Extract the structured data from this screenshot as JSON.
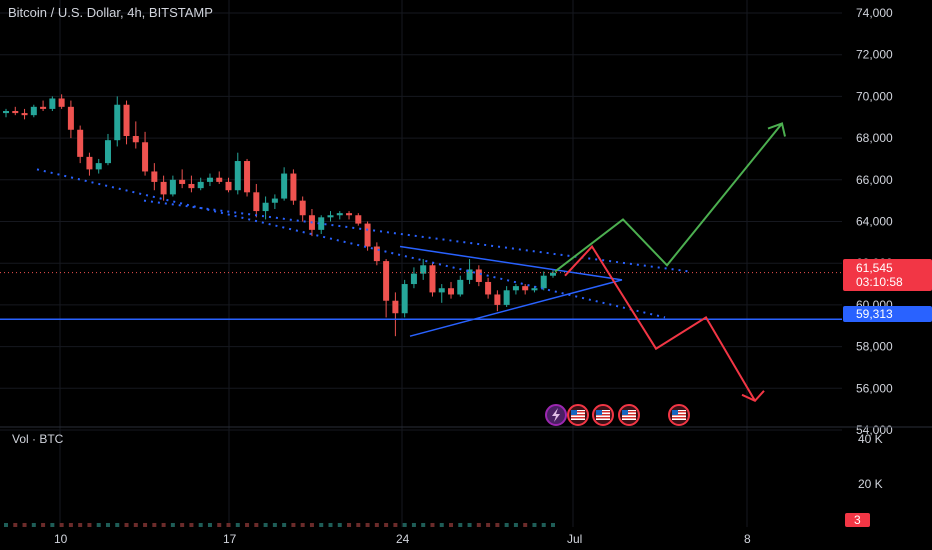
{
  "header": {
    "title": "Bitcoin / U.S. Dollar, 4h, BITSTAMP"
  },
  "volume_pane": {
    "title": "Vol · BTC",
    "ticks": [
      "40 K",
      "20 K"
    ],
    "badge": "3"
  },
  "price_tags": {
    "last_price": "61,545",
    "countdown": "03:10:58",
    "level": "59,313"
  },
  "colors": {
    "background": "#000000",
    "up": "#26a69a",
    "down": "#ef5350",
    "trendline": "#2962ff",
    "bullish_path": "#4caf50",
    "bearish_path": "#f23645",
    "last_price_tag": "#f23645",
    "level_tag": "#2962ff"
  },
  "chart_data": {
    "type": "candlestick",
    "title": "Bitcoin / U.S. Dollar, 4h, BITSTAMP",
    "y_axis": {
      "ticks": [
        74000,
        72000,
        70000,
        68000,
        66000,
        64000,
        62000,
        60000,
        58000,
        56000,
        54000
      ],
      "ylim": [
        53900,
        74200
      ]
    },
    "x_axis": {
      "ticks": [
        "10",
        "17",
        "24",
        "Jul",
        "8"
      ]
    },
    "last_price": 61545,
    "horizontal_level": 59313,
    "price_path": [
      [
        69200,
        69400,
        69000,
        69300
      ],
      [
        69300,
        69500,
        69100,
        69200
      ],
      [
        69200,
        69400,
        68900,
        69100
      ],
      [
        69100,
        69600,
        69000,
        69500
      ],
      [
        69500,
        69800,
        69300,
        69400
      ],
      [
        69400,
        70000,
        69300,
        69900
      ],
      [
        69900,
        70100,
        69400,
        69500
      ],
      [
        69500,
        69800,
        68000,
        68400
      ],
      [
        68400,
        68600,
        66800,
        67100
      ],
      [
        67100,
        67300,
        66200,
        66500
      ],
      [
        66500,
        67000,
        66300,
        66800
      ],
      [
        66800,
        68200,
        66700,
        67900
      ],
      [
        67900,
        70000,
        67600,
        69600
      ],
      [
        69600,
        69800,
        67700,
        68100
      ],
      [
        68100,
        68800,
        67500,
        67800
      ],
      [
        67800,
        68300,
        66200,
        66400
      ],
      [
        66400,
        66800,
        65500,
        65900
      ],
      [
        65900,
        66200,
        65000,
        65300
      ],
      [
        65300,
        66200,
        65200,
        66000
      ],
      [
        66000,
        66500,
        65600,
        65800
      ],
      [
        65800,
        66200,
        65400,
        65600
      ],
      [
        65600,
        66100,
        65500,
        65900
      ],
      [
        65900,
        66300,
        65700,
        66100
      ],
      [
        66100,
        66400,
        65800,
        65900
      ],
      [
        65900,
        66100,
        65400,
        65500
      ],
      [
        65500,
        67300,
        65300,
        66900
      ],
      [
        66900,
        67000,
        65200,
        65400
      ],
      [
        65400,
        65800,
        64200,
        64500
      ],
      [
        64500,
        65200,
        64100,
        64900
      ],
      [
        64900,
        65300,
        64600,
        65100
      ],
      [
        65100,
        66600,
        65000,
        66300
      ],
      [
        66300,
        66500,
        64800,
        65000
      ],
      [
        65000,
        65200,
        64000,
        64300
      ],
      [
        64300,
        64600,
        63300,
        63600
      ],
      [
        63600,
        64300,
        63400,
        64200
      ],
      [
        64200,
        64500,
        64000,
        64300
      ],
      [
        64300,
        64500,
        64100,
        64400
      ],
      [
        64400,
        64500,
        64100,
        64300
      ],
      [
        64300,
        64400,
        63800,
        63900
      ],
      [
        63900,
        64000,
        62600,
        62800
      ],
      [
        62800,
        63000,
        61900,
        62100
      ],
      [
        62100,
        62200,
        59400,
        60200
      ],
      [
        60200,
        60600,
        58500,
        59600
      ],
      [
        59600,
        61200,
        59400,
        61000
      ],
      [
        61000,
        61800,
        60800,
        61500
      ],
      [
        61500,
        62200,
        61200,
        61900
      ],
      [
        61900,
        62000,
        60400,
        60600
      ],
      [
        60600,
        61000,
        60100,
        60800
      ],
      [
        60800,
        61100,
        60300,
        60500
      ],
      [
        60500,
        61400,
        60400,
        61200
      ],
      [
        61200,
        62200,
        61000,
        61700
      ],
      [
        61700,
        61900,
        60900,
        61100
      ],
      [
        61100,
        61300,
        60300,
        60500
      ],
      [
        60500,
        60700,
        59700,
        60000
      ],
      [
        60000,
        60900,
        59900,
        60700
      ],
      [
        60700,
        61000,
        60500,
        60900
      ],
      [
        60900,
        61000,
        60500,
        60700
      ],
      [
        60700,
        60900,
        60600,
        60800
      ],
      [
        60800,
        61600,
        60700,
        61400
      ],
      [
        61400,
        61700,
        61300,
        61545
      ]
    ],
    "drawings": {
      "descending_channel_upper_dotted": [
        [
          144,
          65000
        ],
        [
          690,
          61600
        ]
      ],
      "descending_channel_lower_dotted": [
        [
          37,
          66500
        ],
        [
          665,
          59400
        ]
      ],
      "triangle_upper": [
        [
          400,
          62800
        ],
        [
          622,
          61200
        ]
      ],
      "triangle_lower": [
        [
          410,
          58500
        ],
        [
          622,
          61200
        ]
      ],
      "bullish_path": [
        [
          555,
          61600
        ],
        [
          623,
          64100
        ],
        [
          667,
          61900
        ],
        [
          782,
          68700
        ]
      ],
      "bearish_path": [
        [
          565,
          61400
        ],
        [
          592,
          62800
        ],
        [
          656,
          57900
        ],
        [
          706,
          59400
        ],
        [
          755,
          55400
        ]
      ]
    }
  }
}
